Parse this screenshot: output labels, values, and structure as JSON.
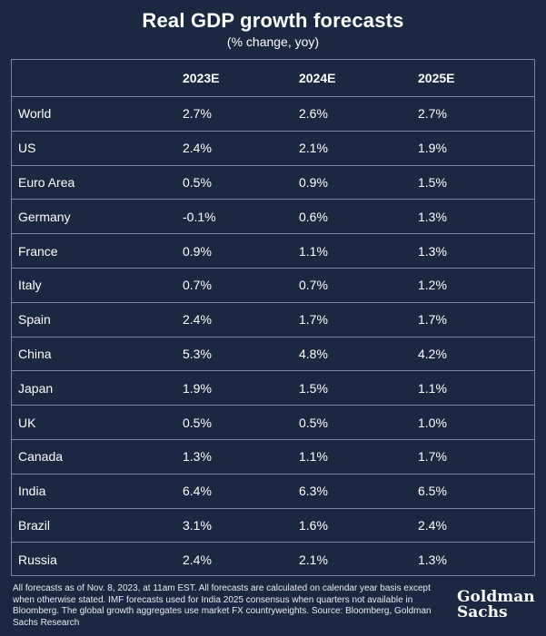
{
  "header": {
    "title": "Real GDP growth forecasts",
    "subtitle": "(% change, yoy)"
  },
  "chart_data": {
    "type": "table",
    "title": "Real GDP growth forecasts",
    "subtitle": "(% change, yoy)",
    "columns": [
      "",
      "2023E",
      "2024E",
      "2025E"
    ],
    "rows": [
      {
        "label": "World",
        "values": [
          "2.7%",
          "2.6%",
          "2.7%"
        ]
      },
      {
        "label": "US",
        "values": [
          "2.4%",
          "2.1%",
          "1.9%"
        ]
      },
      {
        "label": "Euro Area",
        "values": [
          "0.5%",
          "0.9%",
          "1.5%"
        ]
      },
      {
        "label": "Germany",
        "values": [
          "-0.1%",
          "0.6%",
          "1.3%"
        ]
      },
      {
        "label": "France",
        "values": [
          "0.9%",
          "1.1%",
          "1.3%"
        ]
      },
      {
        "label": "Italy",
        "values": [
          "0.7%",
          "0.7%",
          "1.2%"
        ]
      },
      {
        "label": "Spain",
        "values": [
          "2.4%",
          "1.7%",
          "1.7%"
        ]
      },
      {
        "label": "China",
        "values": [
          "5.3%",
          "4.8%",
          "4.2%"
        ]
      },
      {
        "label": "Japan",
        "values": [
          "1.9%",
          "1.5%",
          "1.1%"
        ]
      },
      {
        "label": "UK",
        "values": [
          "0.5%",
          "0.5%",
          "1.0%"
        ]
      },
      {
        "label": "Canada",
        "values": [
          "1.3%",
          "1.1%",
          "1.7%"
        ]
      },
      {
        "label": "India",
        "values": [
          "6.4%",
          "6.3%",
          "6.5%"
        ]
      },
      {
        "label": "Brazil",
        "values": [
          "3.1%",
          "1.6%",
          "2.4%"
        ]
      },
      {
        "label": "Russia",
        "values": [
          "2.4%",
          "2.1%",
          "1.3%"
        ]
      }
    ]
  },
  "footer": {
    "note": "All forecasts as of Nov. 8, 2023, at 11am EST. All forecasts are calculated on calendar year basis except when otherwise stated. IMF forecasts used for India 2025 consensus when quarters not available in Bloomberg. The global growth aggregates use market FX countryweights. Source: Bloomberg, Goldman Sachs Research",
    "logo_line1": "Goldman",
    "logo_line2": "Sachs"
  },
  "colors": {
    "background": "#1b2841",
    "text": "#ffffff",
    "rule": "#7c879a"
  }
}
